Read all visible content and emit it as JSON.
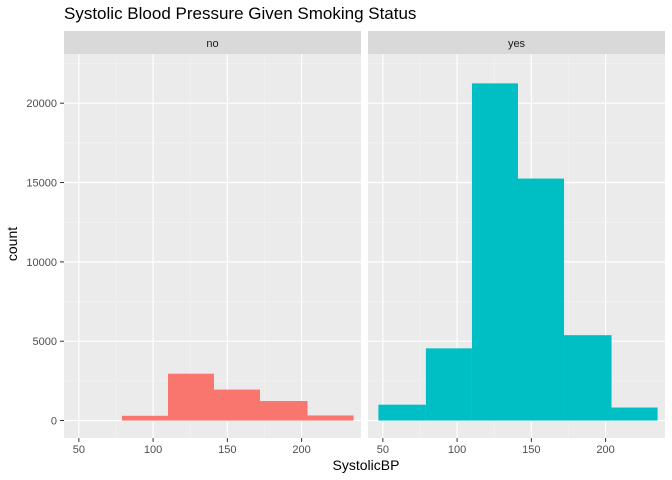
{
  "chart_data": {
    "type": "bar",
    "title": "Systolic Blood Pressure Given Smoking Status",
    "xlabel": "SystolicBP",
    "ylabel": "count",
    "facet_variable": "smoking status",
    "xlim": [
      40,
      240
    ],
    "ylim": [
      -1100,
      23100
    ],
    "x_ticks": [
      50,
      100,
      150,
      200
    ],
    "y_ticks": [
      0,
      5000,
      10000,
      15000,
      20000
    ],
    "bin_edges": [
      47,
      79,
      110,
      141,
      172,
      204,
      235
    ],
    "facets": [
      {
        "label": "no",
        "color": "#F8766D",
        "values": [
          0,
          300,
          2950,
          1950,
          1230,
          320
        ]
      },
      {
        "label": "yes",
        "color": "#00BFC4",
        "values": [
          1000,
          4550,
          21250,
          15250,
          5380,
          820
        ]
      }
    ],
    "grid": true,
    "legend": "none"
  }
}
